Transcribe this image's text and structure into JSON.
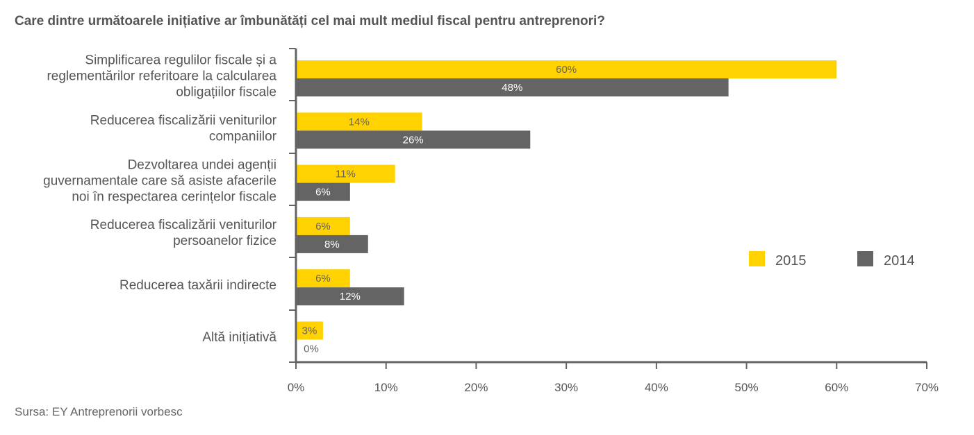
{
  "title": "Care dintre următoarele inițiative ar îmbunătăți cel mai mult mediul fiscal pentru antreprenori?",
  "source": "Sursa: EY Antreprenorii vorbesc",
  "colors": {
    "series_2015": "#FFD200",
    "series_2014": "#646464",
    "axis": "#646464"
  },
  "chart_data": {
    "type": "bar",
    "orientation": "horizontal",
    "title": "Care dintre următoarele inițiative ar îmbunătăți cel mai mult mediul fiscal pentru antreprenori?",
    "xlabel": "",
    "ylabel": "",
    "xlim": [
      0,
      70
    ],
    "ticks": [
      "0%",
      "10%",
      "20%",
      "30%",
      "40%",
      "50%",
      "60%",
      "70%"
    ],
    "tick_values": [
      0,
      10,
      20,
      30,
      40,
      50,
      60,
      70
    ],
    "grid": false,
    "legend_position": "right",
    "categories": [
      [
        "Simplificarea regulilor fiscale și a",
        "reglementărilor referitoare la calcularea",
        "obligațiilor fiscale"
      ],
      [
        "Reducerea fiscalizării veniturilor",
        "companiilor"
      ],
      [
        "Dezvoltarea undei agenții",
        "guvernamentale care să asiste afacerile",
        "noi în respectarea cerințelor fiscale"
      ],
      [
        "Reducerea fiscalizării veniturilor",
        "persoanelor fizice"
      ],
      [
        "Reducerea taxării indirecte"
      ],
      [
        "Altă inițiativă"
      ]
    ],
    "series": [
      {
        "name": "2015",
        "color": "#FFD200",
        "values": [
          60,
          14,
          11,
          6,
          6,
          3
        ],
        "labels": [
          "60%",
          "14%",
          "11%",
          "6%",
          "6%",
          "3%"
        ]
      },
      {
        "name": "2014",
        "color": "#646464",
        "values": [
          48,
          26,
          6,
          8,
          12,
          0
        ],
        "labels": [
          "48%",
          "26%",
          "6%",
          "8%",
          "12%",
          "0%"
        ]
      }
    ]
  }
}
